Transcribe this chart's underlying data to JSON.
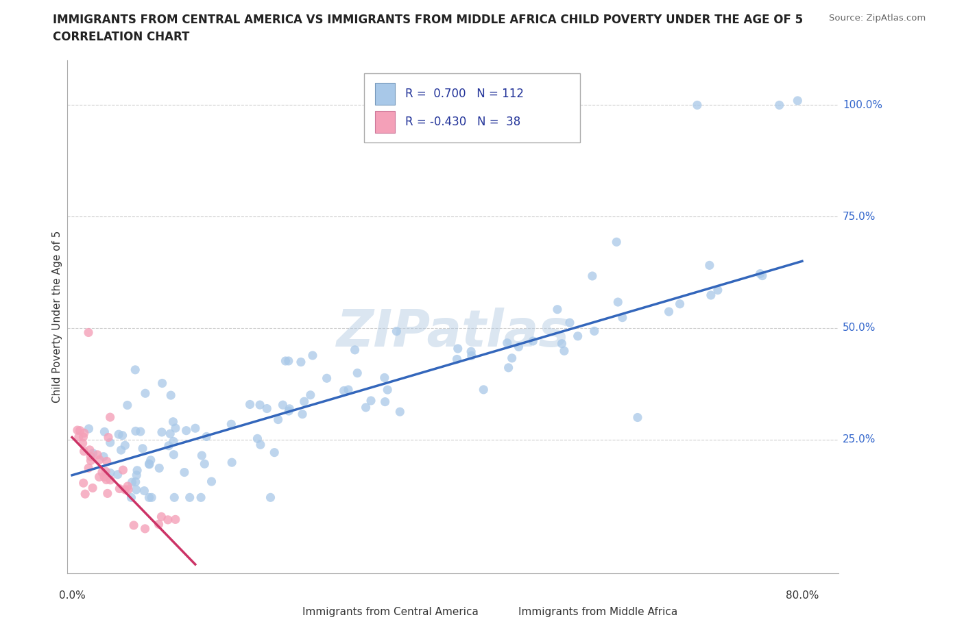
{
  "title_line1": "IMMIGRANTS FROM CENTRAL AMERICA VS IMMIGRANTS FROM MIDDLE AFRICA CHILD POVERTY UNDER THE AGE OF 5",
  "title_line2": "CORRELATION CHART",
  "source": "Source: ZipAtlas.com",
  "ylabel": "Child Poverty Under the Age of 5",
  "xlim": [
    -0.005,
    0.84
  ],
  "ylim": [
    -0.05,
    1.1
  ],
  "blue_color": "#a8c8e8",
  "blue_line_color": "#3366bb",
  "pink_color": "#f4a0b8",
  "pink_line_color": "#cc3366",
  "blue_R": 0.7,
  "blue_N": 112,
  "pink_R": -0.43,
  "pink_N": 38,
  "label1": "Immigrants from Central America",
  "label2": "Immigrants from Middle Africa",
  "grid_yticks": [
    0.25,
    0.5,
    0.75,
    1.0
  ],
  "grid_yticklabels": [
    "25.0%",
    "50.0%",
    "75.0%",
    "100.0%"
  ],
  "watermark": "ZIPatlas",
  "blue_line_x0": 0.0,
  "blue_line_y0": 0.17,
  "blue_line_x1": 0.8,
  "blue_line_y1": 0.65,
  "pink_line_x0": 0.0,
  "pink_line_y0": 0.255,
  "pink_line_x1": 0.135,
  "pink_line_y1": -0.03
}
